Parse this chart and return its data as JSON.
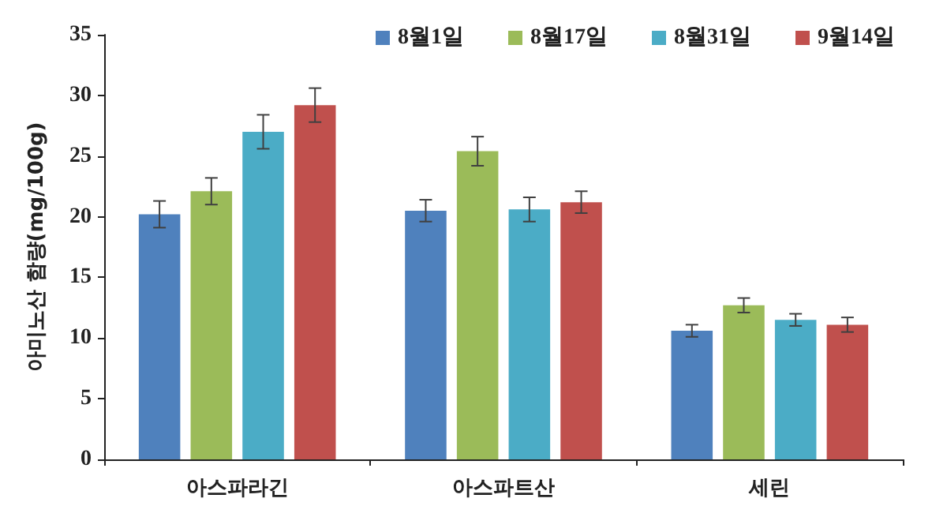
{
  "chart_data": {
    "type": "bar",
    "ylabel": "아미노산 함량(mg/100g)",
    "categories": [
      "아스파라긴",
      "아스파트산",
      "세린"
    ],
    "series": [
      {
        "name": "8월1일",
        "color": "#4f81bd",
        "values": [
          20.2,
          20.5,
          10.6
        ],
        "errors": [
          1.1,
          0.9,
          0.5
        ]
      },
      {
        "name": "8월17일",
        "color": "#9bbb59",
        "values": [
          22.1,
          25.4,
          12.7
        ],
        "errors": [
          1.1,
          1.2,
          0.6
        ]
      },
      {
        "name": "8월31일",
        "color": "#4bacc6",
        "values": [
          27.0,
          20.6,
          11.5
        ],
        "errors": [
          1.4,
          1.0,
          0.5
        ]
      },
      {
        "name": "9월14일",
        "color": "#c0504d",
        "values": [
          29.2,
          21.2,
          11.1
        ],
        "errors": [
          1.4,
          0.9,
          0.6
        ]
      }
    ],
    "ylim": [
      0,
      35
    ],
    "yticks": [
      0,
      5,
      10,
      15,
      20,
      25,
      30,
      35
    ],
    "grid": false,
    "legend": "top right"
  }
}
